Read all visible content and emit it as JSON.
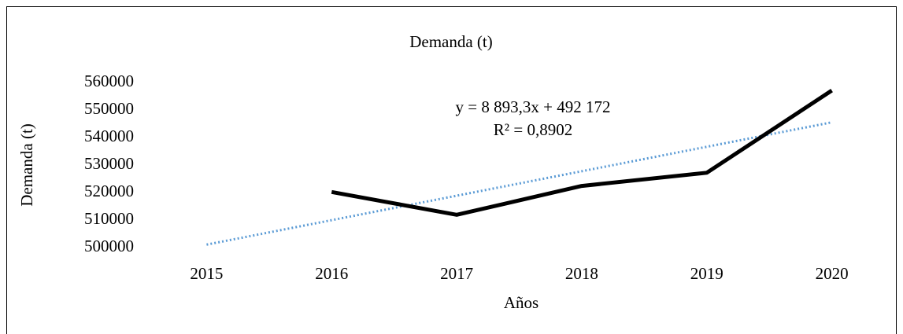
{
  "chart_data": {
    "type": "line",
    "title": "Demanda (t)",
    "x_label": "Años",
    "y_label": "Demanda (t)",
    "categories": [
      "2015",
      "2016",
      "2017",
      "2018",
      "2019",
      "2020"
    ],
    "series": [
      {
        "color": "#000000",
        "values": [
          null,
          520200,
          511900,
          522400,
          527200,
          557100
        ]
      },
      {
        "color": "#5b9bd5",
        "style": "dotted",
        "values": [
          501065,
          509958,
          518852,
          527745,
          536638,
          545532
        ]
      }
    ],
    "annotations": [
      "y = 8 893,3x + 492 172",
      "R² = 0,8902"
    ],
    "ylim": [
      500000,
      560000
    ],
    "yticks": [
      500000,
      510000,
      520000,
      530000,
      540000,
      550000,
      560000
    ],
    "grid": false
  }
}
